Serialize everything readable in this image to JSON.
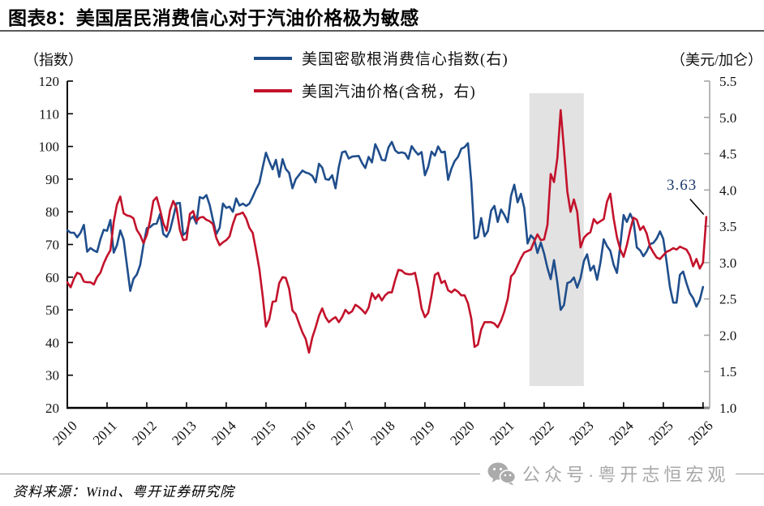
{
  "header": {
    "title": "图表8：美国居民消费信心对于汽油价格极为敏感"
  },
  "footer": {
    "source": "资料来源：Wind、粤开证券研究院"
  },
  "watermark": {
    "icon": "wechat-icon",
    "text": "公众号·粤开志恒宏观",
    "color": "#a8a8a8"
  },
  "chart_data": {
    "type": "line",
    "title": "图表8：美国居民消费信心对于汽油价格极为敏感",
    "x_start": 2010.0,
    "x_step_months": 1,
    "x_range": [
      2010.0,
      2026.1667
    ],
    "x_ticks": [
      "2010",
      "2011",
      "2012",
      "2013",
      "2014",
      "2015",
      "2016",
      "2017",
      "2018",
      "2019",
      "2020",
      "2021",
      "2022",
      "2023",
      "2024",
      "2025",
      "2026"
    ],
    "grid": "off",
    "legend_position": "top-center",
    "left_axis": {
      "label": "（指数）",
      "min": 20,
      "max": 120,
      "ticks": [
        120,
        110,
        100,
        90,
        80,
        70,
        60,
        50,
        40,
        30,
        20
      ]
    },
    "right_axis": {
      "label": "（美元/加仑）",
      "min": 1.0,
      "max": 5.5,
      "ticks": [
        "5.5",
        "5.0",
        "4.5",
        "4.0",
        "3.5",
        "3.0",
        "2.5",
        "2.0",
        "1.5",
        "1.0"
      ]
    },
    "shaded_region": {
      "x_from": 2021.63,
      "x_to": 2023.0,
      "color": "#e2e2e2"
    },
    "annotation": {
      "text": "3.63",
      "x": 2026.08,
      "y_right": 3.63,
      "color": "#1b3a6b"
    },
    "axis_colors": {
      "left_bottom": "#000000",
      "right": "#a6a6a6"
    },
    "series": [
      {
        "name": "美国密歇根消费信心指数(右)",
        "axis": "left",
        "color": "#1f4e8c",
        "values": [
          74.4,
          73.6,
          73.6,
          72.2,
          73.6,
          76.0,
          67.8,
          68.9,
          68.2,
          67.7,
          71.6,
          74.5,
          74.2,
          77.5,
          67.5,
          69.8,
          74.3,
          71.5,
          63.7,
          55.8,
          59.5,
          60.8,
          63.7,
          69.9,
          75.0,
          75.3,
          76.2,
          76.4,
          79.3,
          73.2,
          72.3,
          74.3,
          78.3,
          82.6,
          82.7,
          72.9,
          73.8,
          77.6,
          78.6,
          76.4,
          84.5,
          84.1,
          85.1,
          82.1,
          77.5,
          73.2,
          75.1,
          82.5,
          81.2,
          81.6,
          80.0,
          84.1,
          81.9,
          82.5,
          81.8,
          82.5,
          84.6,
          86.9,
          88.8,
          93.6,
          98.1,
          95.4,
          93.0,
          95.9,
          90.7,
          96.1,
          93.1,
          91.9,
          87.2,
          90.0,
          91.3,
          92.6,
          92.0,
          91.7,
          91.0,
          89.0,
          94.7,
          93.5,
          90.0,
          89.8,
          91.2,
          87.2,
          93.8,
          98.2,
          98.5,
          96.3,
          96.9,
          97.0,
          97.1,
          95.0,
          93.4,
          96.8,
          95.1,
          100.7,
          98.5,
          95.9,
          95.7,
          99.7,
          101.4,
          98.8,
          98.0,
          98.2,
          97.9,
          96.2,
          100.1,
          98.6,
          97.5,
          98.3,
          91.2,
          93.8,
          98.4,
          97.2,
          100.0,
          98.2,
          98.4,
          89.8,
          93.2,
          95.5,
          96.8,
          99.3,
          99.8,
          101.0,
          89.1,
          71.8,
          72.3,
          78.1,
          72.5,
          74.1,
          80.4,
          81.8,
          76.9,
          80.7,
          79.0,
          76.8,
          84.9,
          88.3,
          82.9,
          85.5,
          81.2,
          70.3,
          72.8,
          71.7,
          67.4,
          70.6,
          67.2,
          62.8,
          59.4,
          65.2,
          58.4,
          50.0,
          51.5,
          58.2,
          58.6,
          59.9,
          56.8,
          59.7,
          64.9,
          67.0,
          62.0,
          63.5,
          59.2,
          64.4,
          71.6,
          69.5,
          68.1,
          63.8,
          61.3,
          69.7,
          79.0,
          76.9,
          79.4,
          77.2,
          69.1,
          68.2,
          66.4,
          67.9,
          70.1,
          70.5,
          71.8,
          74.0,
          71.7,
          64.7,
          57.0,
          52.2,
          52.2,
          60.7,
          61.7,
          58.2,
          55.1,
          53.6,
          51.0,
          53.0,
          57.0
        ]
      },
      {
        "name": "美国汽油价格(含税，右)",
        "axis": "right",
        "color": "#c3122b",
        "values": [
          2.73,
          2.66,
          2.78,
          2.86,
          2.84,
          2.74,
          2.73,
          2.73,
          2.7,
          2.8,
          2.86,
          2.99,
          3.09,
          3.17,
          3.56,
          3.8,
          3.91,
          3.68,
          3.65,
          3.64,
          3.61,
          3.45,
          3.38,
          3.27,
          3.38,
          3.58,
          3.85,
          3.9,
          3.73,
          3.54,
          3.44,
          3.72,
          3.85,
          3.75,
          3.45,
          3.31,
          3.32,
          3.67,
          3.71,
          3.57,
          3.62,
          3.63,
          3.59,
          3.57,
          3.53,
          3.34,
          3.24,
          3.28,
          3.31,
          3.36,
          3.53,
          3.66,
          3.67,
          3.69,
          3.61,
          3.48,
          3.41,
          3.17,
          2.91,
          2.54,
          2.12,
          2.22,
          2.46,
          2.47,
          2.72,
          2.8,
          2.79,
          2.64,
          2.34,
          2.29,
          2.16,
          2.04,
          1.95,
          1.76,
          1.97,
          2.11,
          2.27,
          2.37,
          2.25,
          2.18,
          2.22,
          2.25,
          2.18,
          2.25,
          2.35,
          2.3,
          2.33,
          2.42,
          2.39,
          2.35,
          2.3,
          2.38,
          2.58,
          2.5,
          2.56,
          2.48,
          2.55,
          2.59,
          2.59,
          2.76,
          2.9,
          2.89,
          2.85,
          2.84,
          2.84,
          2.86,
          2.65,
          2.37,
          2.25,
          2.31,
          2.55,
          2.83,
          2.86,
          2.72,
          2.75,
          2.62,
          2.59,
          2.63,
          2.6,
          2.55,
          2.55,
          2.44,
          2.23,
          1.84,
          1.87,
          2.08,
          2.18,
          2.18,
          2.18,
          2.16,
          2.11,
          2.2,
          2.33,
          2.5,
          2.81,
          2.86,
          2.96,
          3.06,
          3.14,
          3.16,
          3.18,
          3.29,
          3.39,
          3.31,
          3.32,
          3.52,
          4.22,
          4.11,
          4.44,
          5.1,
          4.56,
          3.98,
          3.7,
          3.87,
          3.7,
          3.21,
          3.34,
          3.39,
          3.42,
          3.6,
          3.54,
          3.57,
          3.6,
          3.84,
          3.95,
          3.61,
          3.35,
          3.18,
          3.08,
          3.24,
          3.45,
          3.62,
          3.59,
          3.45,
          3.5,
          3.4,
          3.22,
          3.14,
          3.07,
          3.05,
          3.1,
          3.15,
          3.17,
          3.2,
          3.18,
          3.22,
          3.2,
          3.18,
          3.1,
          2.95,
          3.05,
          2.92,
          3.0,
          3.63
        ]
      }
    ]
  }
}
